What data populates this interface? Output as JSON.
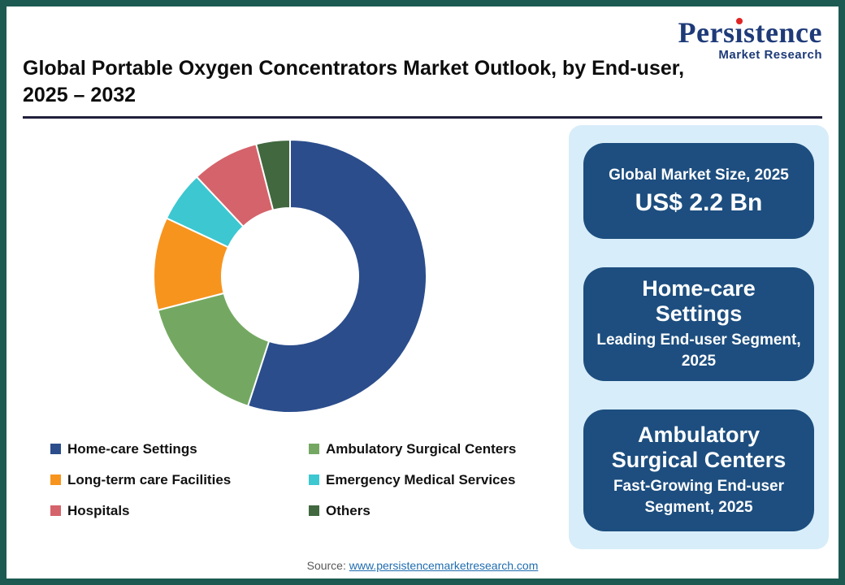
{
  "header": {
    "title_line1": "Global Portable Oxygen Concentrators Market Outlook, by End-user,",
    "title_line2": "2025 – 2032"
  },
  "logo": {
    "brand_pre": "Pers",
    "brand_i": "ı",
    "brand_post": "stence",
    "brand_full": "Persistence",
    "subtitle": "Market Research",
    "brand_color": "#1e3a78",
    "dot_color": "#e02424"
  },
  "chart_data": {
    "type": "pie",
    "donut": true,
    "title": "Global Portable Oxygen Concentrators Market Outlook, by End-user, 2025 – 2032",
    "labels": [
      "Home-care Settings",
      "Ambulatory Surgical Centers",
      "Long-term care Facilities",
      "Emergency Medical Services",
      "Hospitals",
      "Others"
    ],
    "values": [
      55,
      16,
      11,
      6,
      8,
      4
    ],
    "unit": "%",
    "colors": [
      "#2b4d8c",
      "#74a862",
      "#f7941e",
      "#3cc7d1",
      "#d5636b",
      "#41683f"
    ],
    "legend_position": "bottom",
    "start_angle": "top",
    "direction": "clockwise"
  },
  "sidebar": {
    "cards": [
      {
        "line1": "Global Market Size, 2025",
        "line2": "US$ 2.2 Bn"
      },
      {
        "line1": "Home-care Settings",
        "line2": "Leading End-user Segment, 2025"
      },
      {
        "line1": "Ambulatory Surgical Centers",
        "line2": "Fast-Growing End-user Segment, 2025"
      }
    ],
    "card_color": "#1d4e7f",
    "panel_color": "#d7edf9"
  },
  "footer": {
    "source_label": "Source: ",
    "source_link": "www.persistencemarketresearch.com"
  }
}
